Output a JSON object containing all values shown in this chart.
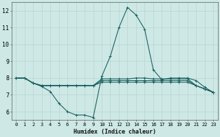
{
  "title": "",
  "xlabel": "Humidex (Indice chaleur)",
  "ylabel": "",
  "background_color": "#cde8e5",
  "grid_color": "#b8d4d0",
  "line_color": "#1a6060",
  "xlim": [
    -0.5,
    23.5
  ],
  "ylim": [
    5.5,
    12.5
  ],
  "xticks": [
    0,
    1,
    2,
    3,
    4,
    5,
    6,
    7,
    8,
    9,
    10,
    11,
    12,
    13,
    14,
    15,
    16,
    17,
    18,
    19,
    20,
    21,
    22,
    23
  ],
  "yticks": [
    6,
    7,
    8,
    9,
    10,
    11,
    12
  ],
  "lines": [
    {
      "x": [
        0,
        1,
        2,
        3,
        4,
        5,
        6,
        7,
        8,
        9,
        10,
        11,
        12,
        13,
        14,
        15,
        16,
        17,
        18,
        19,
        20,
        21,
        22,
        23
      ],
      "y": [
        8.0,
        8.0,
        7.7,
        7.5,
        7.2,
        6.5,
        6.0,
        5.8,
        5.8,
        5.65,
        8.1,
        9.3,
        11.0,
        12.2,
        11.75,
        10.9,
        8.5,
        7.9,
        8.0,
        8.0,
        8.0,
        7.85,
        7.45,
        7.15
      ]
    },
    {
      "x": [
        0,
        1,
        2,
        3,
        4,
        5,
        6,
        7,
        8,
        9,
        10,
        11,
        12,
        13,
        14,
        15,
        16,
        17,
        18,
        19,
        20,
        21,
        22,
        23
      ],
      "y": [
        8.0,
        8.0,
        7.7,
        7.55,
        7.55,
        7.55,
        7.55,
        7.55,
        7.55,
        7.55,
        7.75,
        7.75,
        7.75,
        7.75,
        7.75,
        7.75,
        7.75,
        7.75,
        7.75,
        7.75,
        7.75,
        7.55,
        7.35,
        7.15
      ]
    },
    {
      "x": [
        0,
        1,
        2,
        3,
        4,
        5,
        6,
        7,
        8,
        9,
        10,
        11,
        12,
        13,
        14,
        15,
        16,
        17,
        18,
        19,
        20,
        21,
        22,
        23
      ],
      "y": [
        8.0,
        8.0,
        7.7,
        7.55,
        7.55,
        7.55,
        7.55,
        7.55,
        7.55,
        7.55,
        7.85,
        7.85,
        7.85,
        7.85,
        7.85,
        7.85,
        7.85,
        7.85,
        7.85,
        7.85,
        7.85,
        7.55,
        7.35,
        7.15
      ]
    },
    {
      "x": [
        0,
        1,
        2,
        3,
        4,
        5,
        6,
        7,
        8,
        9,
        10,
        11,
        12,
        13,
        14,
        15,
        16,
        17,
        18,
        19,
        20,
        21,
        22,
        23
      ],
      "y": [
        8.0,
        8.0,
        7.7,
        7.55,
        7.55,
        7.55,
        7.55,
        7.55,
        7.55,
        7.55,
        7.95,
        7.95,
        7.95,
        7.95,
        8.0,
        8.0,
        7.95,
        7.95,
        7.95,
        7.95,
        7.95,
        7.55,
        7.35,
        7.15
      ]
    }
  ],
  "marker": "+",
  "markersize": 3,
  "linewidth": 0.8,
  "xlabel_fontsize": 6,
  "tick_fontsize": 5
}
